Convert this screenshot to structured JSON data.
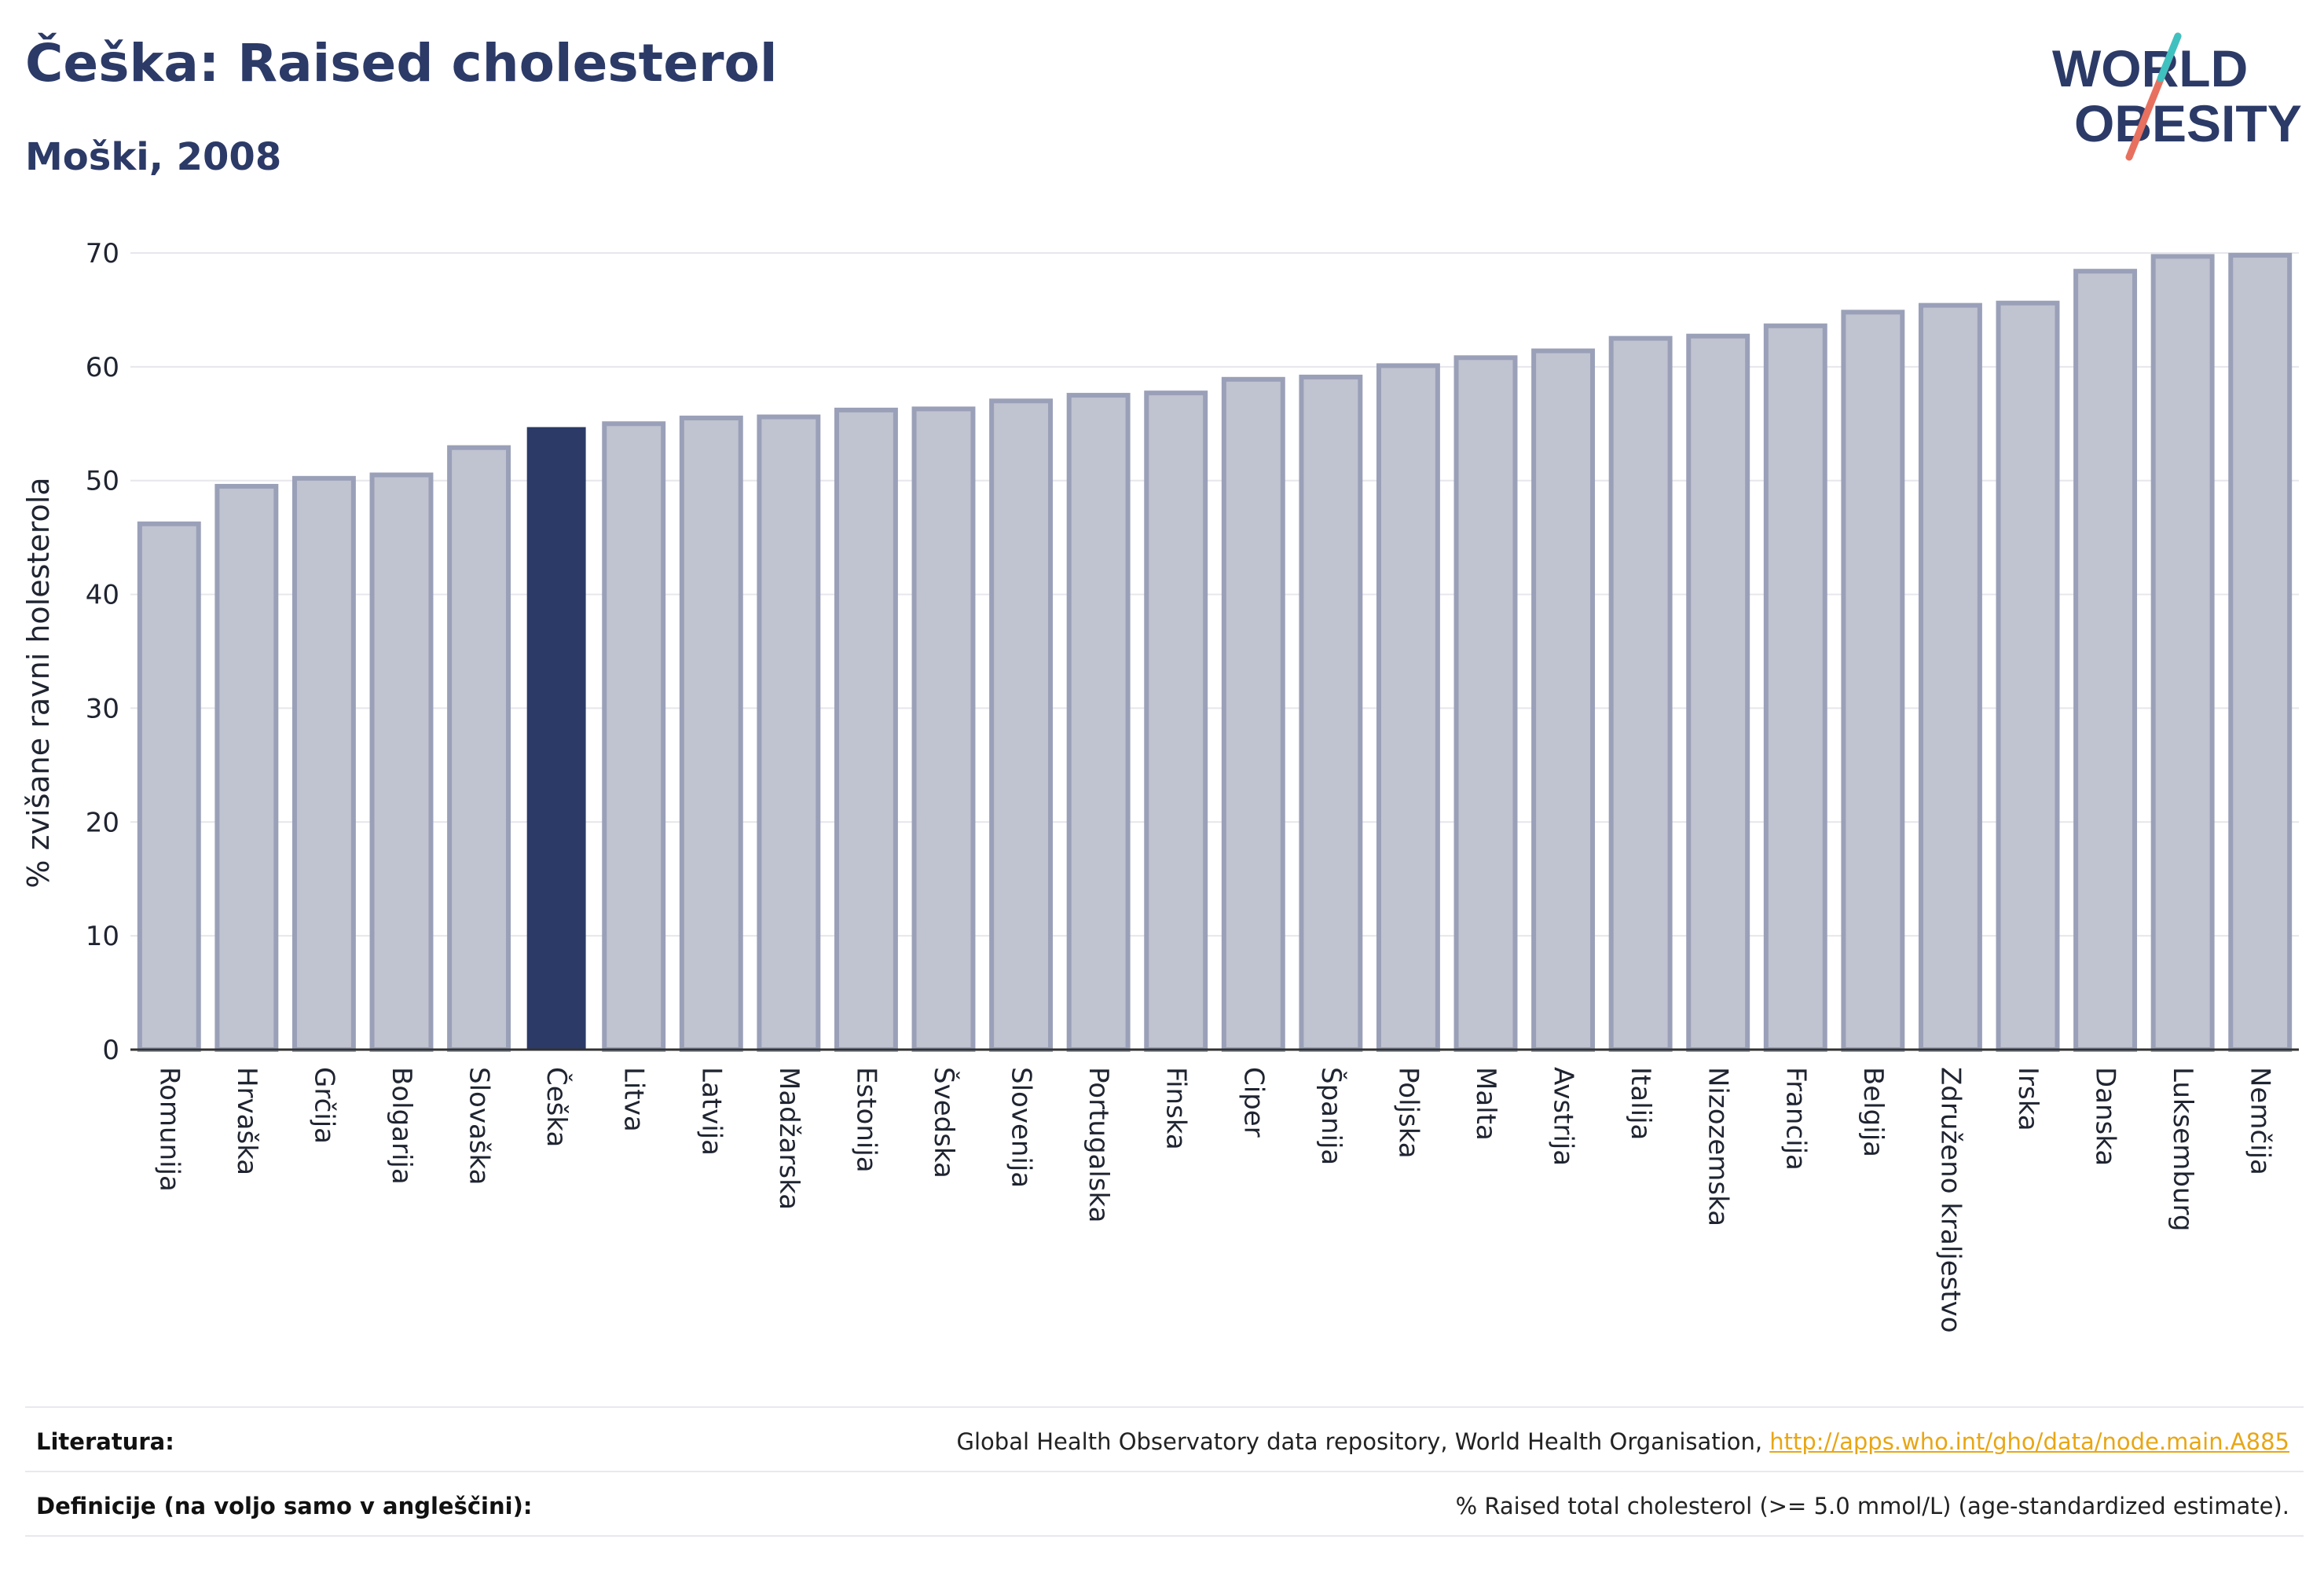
{
  "header": {
    "title": "Češka: Raised cholesterol",
    "subtitle": "Moški, 2008"
  },
  "logo": {
    "line1": "WORLD",
    "line2": "OBESITY",
    "colors": {
      "text": "#2b3a67",
      "teal": "#3fc1c0",
      "coral": "#e8705f"
    }
  },
  "chart_data": {
    "type": "bar",
    "ylabel": "% zvišane ravni holesterola",
    "ylim": [
      0,
      70
    ],
    "yticks": [
      0,
      10,
      20,
      30,
      40,
      50,
      60,
      70
    ],
    "grid": true,
    "categories": [
      "Romunija",
      "Hrvaška",
      "Grčija",
      "Bolgarija",
      "Slovaška",
      "Češka",
      "Litva",
      "Latvija",
      "Madžarska",
      "Estonija",
      "Švedska",
      "Slovenija",
      "Portugalska",
      "Finska",
      "Ciper",
      "Španija",
      "Poljska",
      "Malta",
      "Avstrija",
      "Italija",
      "Nizozemska",
      "Francija",
      "Belgija",
      "Združeno kraljestvo",
      "Irska",
      "Danska",
      "Luksemburg",
      "Nemčija"
    ],
    "values": [
      46.2,
      49.5,
      50.2,
      50.5,
      52.9,
      54.7,
      55.0,
      55.5,
      55.6,
      56.2,
      56.3,
      57.0,
      57.5,
      57.7,
      58.9,
      59.1,
      60.1,
      60.8,
      61.4,
      62.5,
      62.7,
      63.6,
      64.8,
      65.4,
      65.6,
      68.4,
      69.7,
      69.8
    ],
    "highlight": "Češka",
    "colors": {
      "bar": "#c0c3d0",
      "bar_edge": "#9aa0b8",
      "highlight": "#2b3a67",
      "grid": "#e6e6ec",
      "axis": "#333333"
    }
  },
  "footer": {
    "sources_label": "Literatura:",
    "sources_text": "Global Health Observatory data repository, World Health Organisation, ",
    "sources_link": "http://apps.who.int/gho/data/node.main.A885",
    "definitions_label": "Definicije (na voljo samo v angleščini):",
    "definitions_text": "% Raised total cholesterol (>= 5.0 mmol/L) (age-standardized estimate)."
  }
}
